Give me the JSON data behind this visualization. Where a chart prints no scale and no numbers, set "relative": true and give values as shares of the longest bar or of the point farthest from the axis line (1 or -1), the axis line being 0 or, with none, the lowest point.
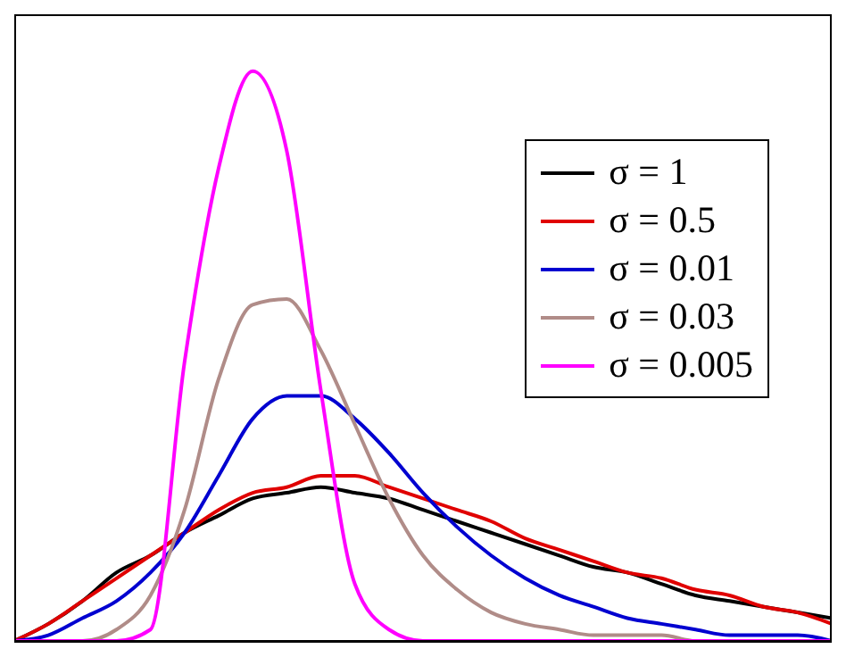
{
  "chart_data": {
    "type": "line",
    "relative": true,
    "tick_labels": false,
    "legend": "top right",
    "marker": "none",
    "line_style": "solid",
    "categories": [
      null,
      null,
      null,
      null,
      null,
      null,
      null,
      null,
      null,
      null,
      null,
      null,
      null,
      null,
      null,
      null,
      null,
      null,
      null,
      null,
      null,
      null,
      null,
      null,
      null
    ],
    "series": [
      {
        "name": "σ = 1",
        "color": "#000000",
        "values": [
          0,
          0.03,
          0.07,
          0.12,
          0.15,
          0.19,
          0.22,
          0.25,
          0.26,
          0.27,
          0.26,
          0.25,
          0.23,
          0.21,
          0.19,
          0.17,
          0.15,
          0.13,
          0.12,
          0.1,
          0.08,
          0.07,
          0.06,
          0.05,
          0.04
        ]
      },
      {
        "name": "σ = 0.5",
        "color": "#e00000",
        "values": [
          0,
          0.03,
          0.07,
          0.11,
          0.15,
          0.19,
          0.23,
          0.26,
          0.27,
          0.29,
          0.29,
          0.27,
          0.25,
          0.23,
          0.21,
          0.18,
          0.16,
          0.14,
          0.12,
          0.11,
          0.09,
          0.08,
          0.06,
          0.05,
          0.03
        ]
      },
      {
        "name": "σ = 0.01",
        "color": "#0000d0",
        "values": [
          0,
          0.01,
          0.04,
          0.07,
          0.12,
          0.19,
          0.29,
          0.39,
          0.43,
          0.43,
          0.39,
          0.33,
          0.26,
          0.2,
          0.15,
          0.11,
          0.08,
          0.06,
          0.04,
          0.03,
          0.02,
          0.01,
          0.01,
          0.01,
          0
        ]
      },
      {
        "name": "σ = 0.03",
        "color": "#b08c88",
        "values": [
          0,
          0,
          0,
          0.02,
          0.08,
          0.23,
          0.46,
          0.59,
          0.6,
          0.51,
          0.38,
          0.25,
          0.15,
          0.09,
          0.05,
          0.03,
          0.02,
          0.01,
          0.01,
          0.01,
          0,
          0,
          null,
          null,
          null
        ]
      },
      {
        "name": "σ = 0.005",
        "color": "#ff00ff",
        "values": [
          0,
          0,
          0,
          0,
          0.02,
          0.49,
          0.83,
          1.0,
          0.86,
          0.44,
          0.1,
          0.02,
          0,
          0,
          0,
          0,
          0,
          0,
          0,
          0,
          0,
          0,
          0,
          0,
          0
        ]
      }
    ]
  }
}
